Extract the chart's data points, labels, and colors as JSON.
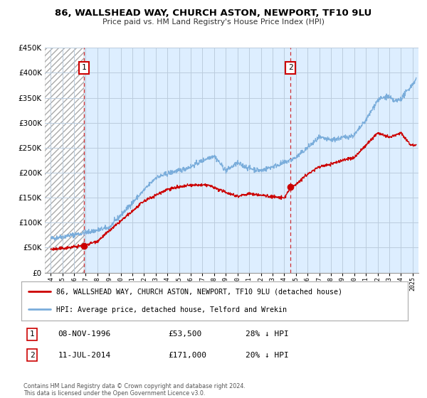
{
  "title": "86, WALLSHEAD WAY, CHURCH ASTON, NEWPORT, TF10 9LU",
  "subtitle": "Price paid vs. HM Land Registry's House Price Index (HPI)",
  "legend_label_red": "86, WALLSHEAD WAY, CHURCH ASTON, NEWPORT, TF10 9LU (detached house)",
  "legend_label_blue": "HPI: Average price, detached house, Telford and Wrekin",
  "annotation1_date": "08-NOV-1996",
  "annotation1_price": "£53,500",
  "annotation1_hpi": "28% ↓ HPI",
  "annotation2_date": "11-JUL-2014",
  "annotation2_price": "£171,000",
  "annotation2_hpi": "20% ↓ HPI",
  "copyright_text": "Contains HM Land Registry data © Crown copyright and database right 2024.\nThis data is licensed under the Open Government Licence v3.0.",
  "red_color": "#cc0000",
  "blue_color": "#7aaddb",
  "point1_x": 1996.85,
  "point1_y": 53500,
  "point2_x": 2014.53,
  "point2_y": 171000,
  "vline1_x": 1996.85,
  "vline2_x": 2014.53,
  "ylim": [
    0,
    450000
  ],
  "xlim_start": 1993.5,
  "xlim_end": 2025.5,
  "chart_bg": "#ddeeff",
  "hatch_bg": "#ffffff",
  "grid_color": "#bbccdd"
}
